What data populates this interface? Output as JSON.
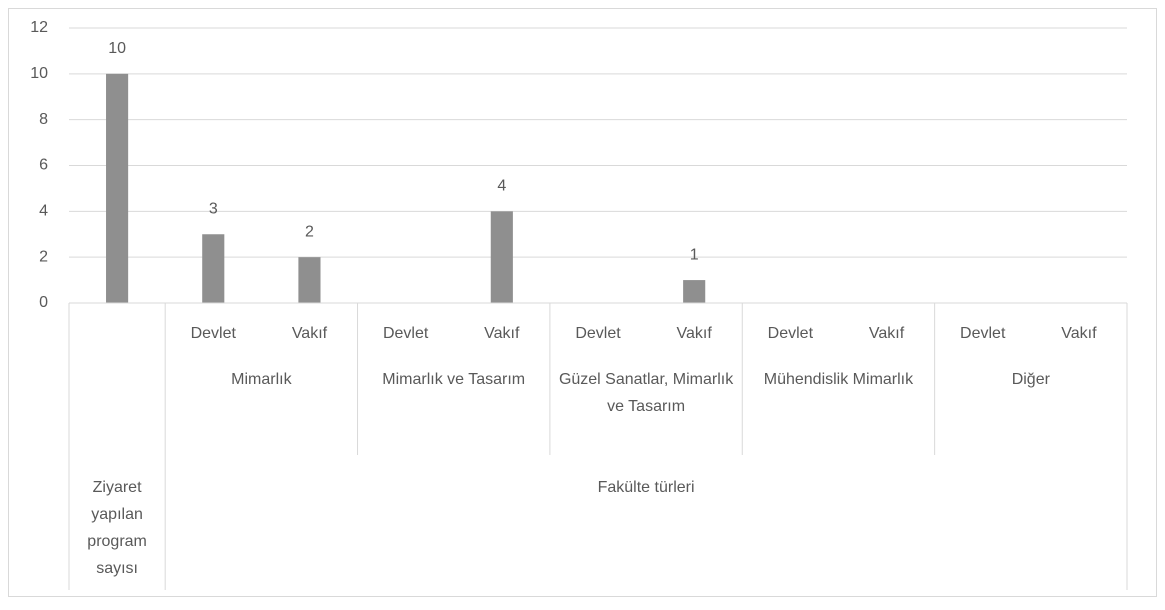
{
  "chart_data": {
    "type": "bar",
    "categories": [
      null,
      "Devlet",
      "Vakıf",
      "Devlet",
      "Vakıf",
      "Devlet",
      "Vakıf",
      "Devlet",
      "Vakıf",
      "Devlet",
      "Vakıf"
    ],
    "values": [
      10,
      3,
      2,
      null,
      4,
      null,
      1,
      null,
      null,
      null,
      null
    ],
    "groups": [
      "Mimarlık",
      "Mimarlık ve Tasarım",
      "Güzel Sanatlar, Mimarlık ve Tasarım",
      "Mühendislik Mimarlık",
      "Diğer"
    ],
    "outer": [
      "Ziyaret yapılan program sayısı",
      "Fakülte türleri"
    ],
    "color": "#8f8f8f",
    "ylim": [
      0,
      12
    ],
    "yticks": [
      0,
      2,
      4,
      6,
      8,
      10,
      12
    ],
    "grid": true
  }
}
